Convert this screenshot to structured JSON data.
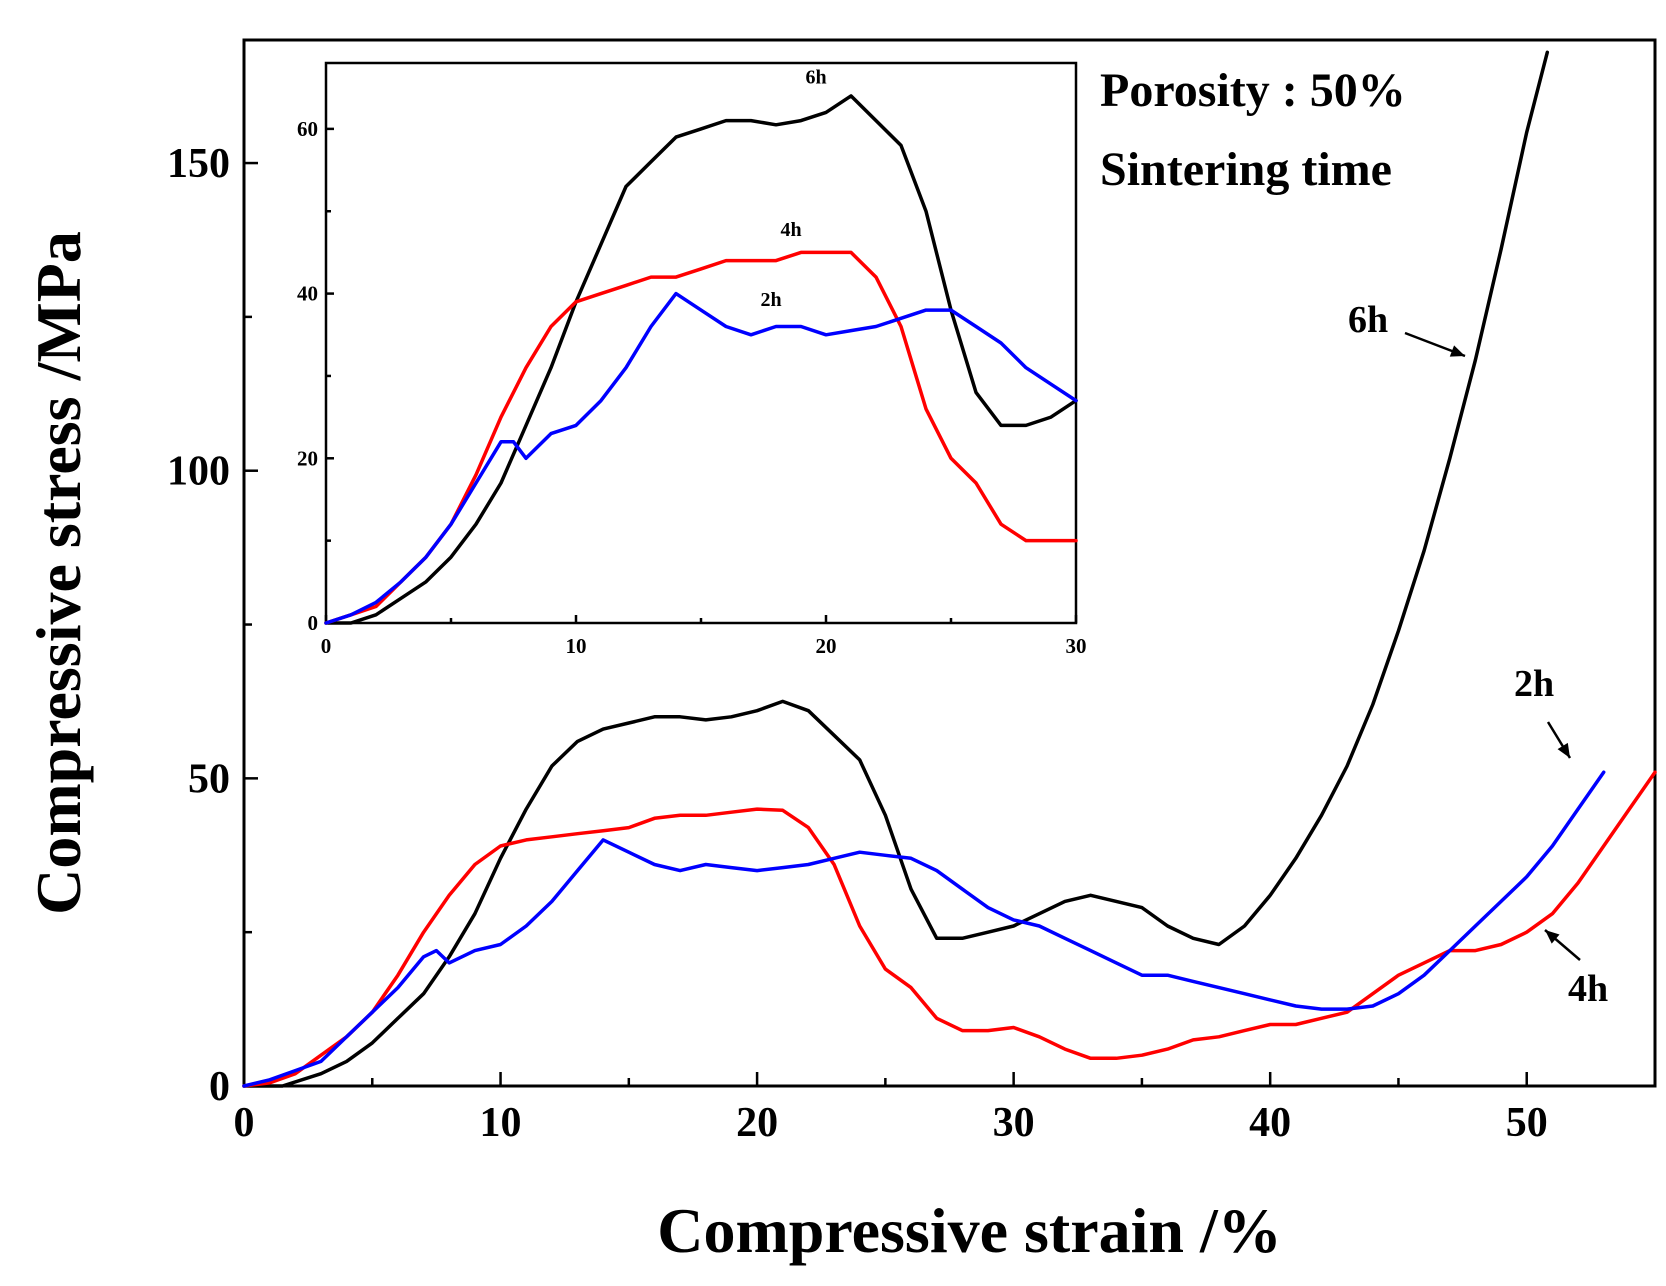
{
  "chart_data": [
    {
      "id": "main",
      "type": "line",
      "xlabel": "Compressive strain /%",
      "ylabel": "Compressive stress /MPa",
      "xlim": [
        0,
        55
      ],
      "ylim": [
        0,
        170
      ],
      "xticks": [
        0,
        10,
        20,
        30,
        40,
        50
      ],
      "yticks": [
        0,
        50,
        100,
        150
      ],
      "grid": false,
      "annotations": [
        "Porosity : 50%",
        "Sintering time"
      ],
      "series": [
        {
          "name": "6h",
          "color": "#000000",
          "points": [
            [
              0,
              0
            ],
            [
              1.5,
              0
            ],
            [
              3,
              2
            ],
            [
              4,
              4
            ],
            [
              5,
              7
            ],
            [
              6,
              11
            ],
            [
              7,
              15
            ],
            [
              8,
              21
            ],
            [
              9,
              28
            ],
            [
              10,
              37
            ],
            [
              11,
              45
            ],
            [
              12,
              52
            ],
            [
              13,
              56
            ],
            [
              14,
              58
            ],
            [
              15,
              59
            ],
            [
              16,
              60
            ],
            [
              17,
              60
            ],
            [
              18,
              59.5
            ],
            [
              19,
              60
            ],
            [
              20,
              61
            ],
            [
              21,
              62.5
            ],
            [
              22,
              61
            ],
            [
              23,
              57
            ],
            [
              24,
              53
            ],
            [
              25,
              44
            ],
            [
              26,
              32
            ],
            [
              27,
              24
            ],
            [
              28,
              24
            ],
            [
              29,
              25
            ],
            [
              30,
              26
            ],
            [
              31,
              28
            ],
            [
              32,
              30
            ],
            [
              33,
              31
            ],
            [
              34,
              30
            ],
            [
              35,
              29
            ],
            [
              36,
              26
            ],
            [
              37,
              24
            ],
            [
              38,
              23
            ],
            [
              39,
              26
            ],
            [
              40,
              31
            ],
            [
              41,
              37
            ],
            [
              42,
              44
            ],
            [
              43,
              52
            ],
            [
              44,
              62
            ],
            [
              45,
              74
            ],
            [
              46,
              87
            ],
            [
              47,
              102
            ],
            [
              48,
              118
            ],
            [
              49,
              136
            ],
            [
              50,
              155
            ],
            [
              50.8,
              168
            ]
          ]
        },
        {
          "name": "4h",
          "color": "#ff0000",
          "points": [
            [
              0,
              0
            ],
            [
              1,
              0.5
            ],
            [
              2,
              2
            ],
            [
              3,
              5
            ],
            [
              4,
              8
            ],
            [
              5,
              12
            ],
            [
              6,
              18
            ],
            [
              7,
              25
            ],
            [
              8,
              31
            ],
            [
              9,
              36
            ],
            [
              10,
              39
            ],
            [
              11,
              40
            ],
            [
              12,
              40.5
            ],
            [
              13,
              41
            ],
            [
              14,
              41.5
            ],
            [
              15,
              42
            ],
            [
              16,
              43.5
            ],
            [
              17,
              44
            ],
            [
              18,
              44
            ],
            [
              19,
              44.5
            ],
            [
              20,
              45
            ],
            [
              21,
              44.8
            ],
            [
              22,
              42
            ],
            [
              23,
              36
            ],
            [
              24,
              26
            ],
            [
              25,
              19
            ],
            [
              26,
              16
            ],
            [
              27,
              11
            ],
            [
              28,
              9
            ],
            [
              29,
              9
            ],
            [
              30,
              9.5
            ],
            [
              31,
              8
            ],
            [
              32,
              6
            ],
            [
              33,
              4.5
            ],
            [
              34,
              4.5
            ],
            [
              35,
              5
            ],
            [
              36,
              6
            ],
            [
              37,
              7.5
            ],
            [
              38,
              8
            ],
            [
              39,
              9
            ],
            [
              40,
              10
            ],
            [
              41,
              10
            ],
            [
              42,
              11
            ],
            [
              43,
              12
            ],
            [
              44,
              15
            ],
            [
              45,
              18
            ],
            [
              46,
              20
            ],
            [
              47,
              22
            ],
            [
              48,
              22
            ],
            [
              49,
              23
            ],
            [
              50,
              25
            ],
            [
              51,
              28
            ],
            [
              52,
              33
            ],
            [
              53,
              39
            ],
            [
              54,
              45
            ],
            [
              55,
              51
            ]
          ]
        },
        {
          "name": "2h",
          "color": "#0000ff",
          "points": [
            [
              0,
              0
            ],
            [
              1,
              1
            ],
            [
              2,
              2.5
            ],
            [
              3,
              4
            ],
            [
              4,
              8
            ],
            [
              5,
              12
            ],
            [
              6,
              16
            ],
            [
              7,
              21
            ],
            [
              7.5,
              22
            ],
            [
              8,
              20
            ],
            [
              9,
              22
            ],
            [
              10,
              23
            ],
            [
              11,
              26
            ],
            [
              12,
              30
            ],
            [
              13,
              35
            ],
            [
              14,
              40
            ],
            [
              15,
              38
            ],
            [
              16,
              36
            ],
            [
              17,
              35
            ],
            [
              18,
              36
            ],
            [
              19,
              35.5
            ],
            [
              20,
              35
            ],
            [
              21,
              35.5
            ],
            [
              22,
              36
            ],
            [
              23,
              37
            ],
            [
              24,
              38
            ],
            [
              25,
              37.5
            ],
            [
              26,
              37
            ],
            [
              27,
              35
            ],
            [
              28,
              32
            ],
            [
              29,
              29
            ],
            [
              30,
              27
            ],
            [
              31,
              26
            ],
            [
              32,
              24
            ],
            [
              33,
              22
            ],
            [
              34,
              20
            ],
            [
              35,
              18
            ],
            [
              36,
              18
            ],
            [
              37,
              17
            ],
            [
              38,
              16
            ],
            [
              39,
              15
            ],
            [
              40,
              14
            ],
            [
              41,
              13
            ],
            [
              42,
              12.5
            ],
            [
              43,
              12.5
            ],
            [
              44,
              13
            ],
            [
              45,
              15
            ],
            [
              46,
              18
            ],
            [
              47,
              22
            ],
            [
              48,
              26
            ],
            [
              49,
              30
            ],
            [
              50,
              34
            ],
            [
              51,
              39
            ],
            [
              52,
              45
            ],
            [
              53,
              51
            ]
          ]
        }
      ],
      "series_labels": [
        "6h",
        "2h",
        "4h"
      ]
    },
    {
      "id": "inset",
      "type": "line",
      "xlim": [
        0,
        30
      ],
      "ylim": [
        0,
        68
      ],
      "xticks": [
        0,
        10,
        20,
        30
      ],
      "yticks": [
        0,
        20,
        40,
        60
      ],
      "grid": false,
      "series": [
        {
          "name": "6h",
          "color": "#000000",
          "points": [
            [
              0,
              0
            ],
            [
              1,
              0
            ],
            [
              2,
              1
            ],
            [
              3,
              3
            ],
            [
              4,
              5
            ],
            [
              5,
              8
            ],
            [
              6,
              12
            ],
            [
              7,
              17
            ],
            [
              8,
              24
            ],
            [
              9,
              31
            ],
            [
              10,
              39
            ],
            [
              11,
              46
            ],
            [
              12,
              53
            ],
            [
              13,
              56
            ],
            [
              14,
              59
            ],
            [
              15,
              60
            ],
            [
              16,
              61
            ],
            [
              17,
              61
            ],
            [
              18,
              60.5
            ],
            [
              19,
              61
            ],
            [
              20,
              62
            ],
            [
              21,
              64
            ],
            [
              22,
              61
            ],
            [
              23,
              58
            ],
            [
              24,
              50
            ],
            [
              25,
              38
            ],
            [
              26,
              28
            ],
            [
              27,
              24
            ],
            [
              28,
              24
            ],
            [
              29,
              25
            ],
            [
              30,
              27
            ]
          ]
        },
        {
          "name": "4h",
          "color": "#ff0000",
          "points": [
            [
              0,
              0
            ],
            [
              1,
              1
            ],
            [
              2,
              2
            ],
            [
              3,
              5
            ],
            [
              4,
              8
            ],
            [
              5,
              12
            ],
            [
              6,
              18
            ],
            [
              7,
              25
            ],
            [
              8,
              31
            ],
            [
              9,
              36
            ],
            [
              10,
              39
            ],
            [
              11,
              40
            ],
            [
              12,
              41
            ],
            [
              13,
              42
            ],
            [
              14,
              42
            ],
            [
              15,
              43
            ],
            [
              16,
              44
            ],
            [
              17,
              44
            ],
            [
              18,
              44
            ],
            [
              19,
              45
            ],
            [
              20,
              45
            ],
            [
              21,
              45
            ],
            [
              22,
              42
            ],
            [
              23,
              36
            ],
            [
              24,
              26
            ],
            [
              25,
              20
            ],
            [
              26,
              17
            ],
            [
              27,
              12
            ],
            [
              28,
              10
            ],
            [
              29,
              10
            ],
            [
              30,
              10
            ]
          ]
        },
        {
          "name": "2h",
          "color": "#0000ff",
          "points": [
            [
              0,
              0
            ],
            [
              1,
              1
            ],
            [
              2,
              2.5
            ],
            [
              3,
              5
            ],
            [
              4,
              8
            ],
            [
              5,
              12
            ],
            [
              6,
              17
            ],
            [
              7,
              22
            ],
            [
              7.5,
              22
            ],
            [
              8,
              20
            ],
            [
              9,
              23
            ],
            [
              10,
              24
            ],
            [
              11,
              27
            ],
            [
              12,
              31
            ],
            [
              13,
              36
            ],
            [
              14,
              40
            ],
            [
              15,
              38
            ],
            [
              16,
              36
            ],
            [
              17,
              35
            ],
            [
              18,
              36
            ],
            [
              19,
              36
            ],
            [
              20,
              35
            ],
            [
              21,
              35.5
            ],
            [
              22,
              36
            ],
            [
              23,
              37
            ],
            [
              24,
              38
            ],
            [
              25,
              38
            ],
            [
              26,
              36
            ],
            [
              27,
              34
            ],
            [
              28,
              31
            ],
            [
              29,
              29
            ],
            [
              30,
              27
            ]
          ]
        }
      ],
      "series_labels": [
        "6h",
        "4h",
        "2h"
      ]
    }
  ]
}
